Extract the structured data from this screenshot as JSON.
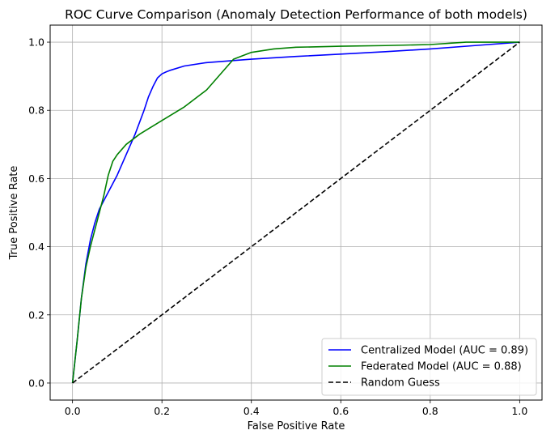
{
  "chart_data": {
    "type": "line",
    "title": "ROC Curve Comparison (Anomaly Detection Performance of both models)",
    "xlabel": "False Positive Rate",
    "ylabel": "True Positive Rate",
    "xlim": [
      -0.05,
      1.05
    ],
    "ylim": [
      -0.05,
      1.05
    ],
    "xticks": [
      0.0,
      0.2,
      0.4,
      0.6,
      0.8,
      1.0
    ],
    "yticks": [
      0.0,
      0.2,
      0.4,
      0.6,
      0.8,
      1.0
    ],
    "xtick_labels": [
      "0.0",
      "0.2",
      "0.4",
      "0.6",
      "0.8",
      "1.0"
    ],
    "ytick_labels": [
      "0.0",
      "0.2",
      "0.4",
      "0.6",
      "0.8",
      "1.0"
    ],
    "grid": true,
    "legend_position": "lower-right",
    "series": [
      {
        "name": "Centralized Model (AUC = 0.89)",
        "color": "#0000ff",
        "style": "solid",
        "x": [
          0.0,
          0.01,
          0.02,
          0.03,
          0.04,
          0.05,
          0.06,
          0.08,
          0.1,
          0.12,
          0.14,
          0.16,
          0.17,
          0.18,
          0.19,
          0.2,
          0.21,
          0.22,
          0.25,
          0.3,
          0.4,
          0.5,
          0.6,
          0.7,
          0.8,
          0.9,
          1.0
        ],
        "y": [
          0.0,
          0.12,
          0.25,
          0.35,
          0.42,
          0.47,
          0.51,
          0.56,
          0.61,
          0.67,
          0.73,
          0.8,
          0.84,
          0.87,
          0.895,
          0.907,
          0.913,
          0.918,
          0.93,
          0.94,
          0.95,
          0.958,
          0.965,
          0.972,
          0.98,
          0.99,
          1.0
        ]
      },
      {
        "name": "Federated Model (AUC = 0.88)",
        "color": "#008000",
        "style": "solid",
        "x": [
          0.0,
          0.01,
          0.02,
          0.03,
          0.04,
          0.05,
          0.06,
          0.07,
          0.08,
          0.09,
          0.1,
          0.12,
          0.15,
          0.2,
          0.25,
          0.28,
          0.3,
          0.32,
          0.34,
          0.36,
          0.38,
          0.4,
          0.45,
          0.5,
          0.6,
          0.7,
          0.8,
          0.88,
          0.95,
          1.0
        ],
        "y": [
          0.0,
          0.12,
          0.25,
          0.34,
          0.4,
          0.45,
          0.5,
          0.55,
          0.61,
          0.65,
          0.67,
          0.7,
          0.73,
          0.77,
          0.81,
          0.84,
          0.86,
          0.89,
          0.92,
          0.95,
          0.96,
          0.97,
          0.98,
          0.985,
          0.988,
          0.99,
          0.993,
          1.0,
          1.0,
          1.0
        ]
      },
      {
        "name": "Random Guess",
        "color": "#000000",
        "style": "dashed",
        "x": [
          0.0,
          1.0
        ],
        "y": [
          0.0,
          1.0
        ]
      }
    ]
  }
}
